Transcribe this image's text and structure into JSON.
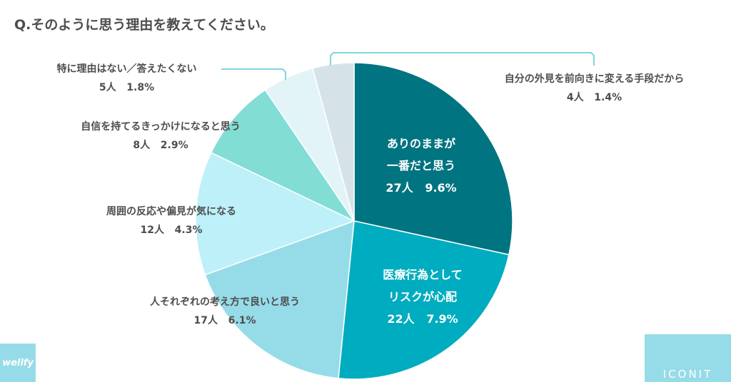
{
  "chart_data": {
    "type": "pie",
    "title": "Q.そのように思う理由を教えてください。",
    "slices": [
      {
        "label": "ありのままが一番だと思う",
        "count": "27人",
        "percent": "9.6%",
        "value": 27,
        "color": "#007480"
      },
      {
        "label": "医療行為としてリスクが心配",
        "count": "22人",
        "percent": "7.9%",
        "value": 22,
        "color": "#00acbf"
      },
      {
        "label": "人それぞれの考え方で良いと思う",
        "count": "17人",
        "percent": "6.1%",
        "value": 17,
        "color": "#96dce8"
      },
      {
        "label": "周囲の反応や偏見が気になる",
        "count": "12人",
        "percent": "4.3%",
        "value": 12,
        "color": "#bdf0f8"
      },
      {
        "label": "自信を持てるきっかけになると思う",
        "count": "8人",
        "percent": "2.9%",
        "value": 8,
        "color": "#82ddd5"
      },
      {
        "label": "特に理由はない／答えたくない",
        "count": "5人",
        "percent": "1.8%",
        "value": 5,
        "color": "#e2f4f8"
      },
      {
        "label": "自分の外見を前向きに変える手段だから",
        "count": "4人",
        "percent": "1.4%",
        "value": 4,
        "color": "#d5e3e8"
      }
    ]
  },
  "labels_in": {
    "s0a": "ありのままが",
    "s0b": "一番だと思う",
    "s1a": "医療行為として",
    "s1b": "リスクが心配"
  },
  "logos": {
    "left": "wellfy",
    "right": "ICONIT"
  }
}
